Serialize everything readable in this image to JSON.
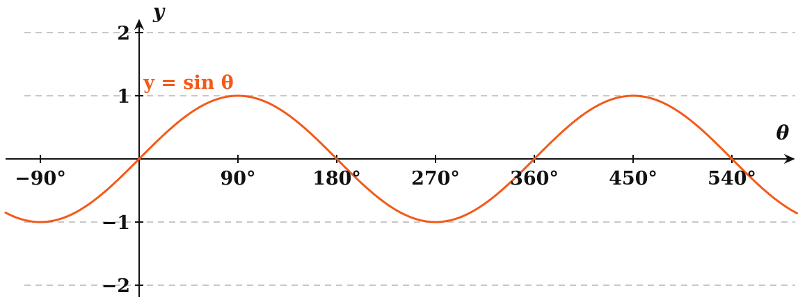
{
  "chart_data": {
    "type": "line",
    "title": "",
    "xlabel": "θ",
    "ylabel": "y",
    "xlim": [
      -102,
      661
    ],
    "ylim": [
      -2,
      2
    ],
    "grid": "dashed horizontal lines at y = -2, -1, 1, 2",
    "x_ticks": [
      {
        "value": -90,
        "label": "−90°"
      },
      {
        "value": 90,
        "label": "90°"
      },
      {
        "value": 180,
        "label": "180°"
      },
      {
        "value": 270,
        "label": "270°"
      },
      {
        "value": 360,
        "label": "360°"
      },
      {
        "value": 450,
        "label": "450°"
      },
      {
        "value": 540,
        "label": "540°"
      }
    ],
    "y_ticks": [
      {
        "value": 2,
        "label": "2"
      },
      {
        "value": 1,
        "label": "1"
      },
      {
        "value": -1,
        "label": "−1"
      },
      {
        "value": -2,
        "label": "−2"
      }
    ],
    "series": [
      {
        "name": "y = sin θ",
        "color": "#f25a19",
        "function": "sin",
        "x": [
          -120,
          -90,
          -60,
          -30,
          0,
          30,
          60,
          90,
          120,
          150,
          180,
          210,
          240,
          270,
          300,
          330,
          360,
          390,
          420,
          450,
          480,
          510,
          540,
          570,
          600
        ],
        "y": [
          -0.866,
          -1,
          -0.866,
          -0.5,
          0,
          0.5,
          0.866,
          1,
          0.866,
          0.5,
          0,
          -0.5,
          -0.866,
          -1,
          -0.866,
          -0.5,
          0,
          0.5,
          0.866,
          1,
          0.866,
          0.5,
          0,
          -0.5,
          -0.866
        ]
      }
    ],
    "curve_label_at_x": 45
  },
  "colors": {
    "curve": "#f25a19",
    "axis": "#111111",
    "grid": "#c8c8c8"
  }
}
